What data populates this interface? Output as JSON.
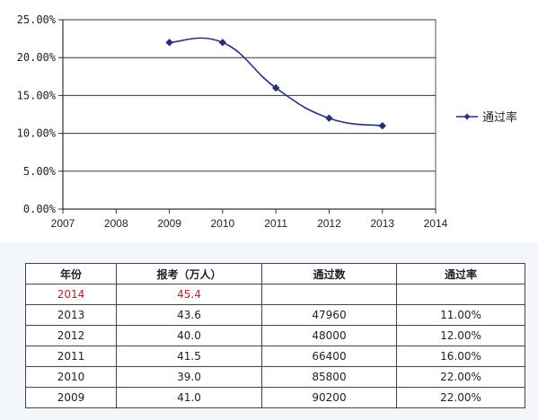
{
  "chart_data": {
    "type": "line",
    "x": [
      2009,
      2010,
      2011,
      2012,
      2013
    ],
    "series": [
      {
        "name": "通过率",
        "values": [
          0.22,
          0.22,
          0.16,
          0.12,
          0.11
        ]
      }
    ],
    "xlim": [
      2007,
      2014
    ],
    "ylim": [
      0,
      0.25
    ],
    "x_ticks": [
      "2007",
      "2008",
      "2009",
      "2010",
      "2011",
      "2012",
      "2013",
      "2014"
    ],
    "y_ticks": [
      "0.00%",
      "5.00%",
      "10.00%",
      "15.00%",
      "20.00%",
      "25.00%"
    ],
    "y_tick_values": [
      0,
      0.05,
      0.1,
      0.15,
      0.2,
      0.25
    ],
    "grid": true,
    "smooth": true,
    "legend_position": "right",
    "line_color": "#2a2f7a"
  },
  "table": {
    "headers": [
      "年份",
      "报考（万人）",
      "通过数",
      "通过率"
    ],
    "rows": [
      [
        "2014",
        "45.4",
        "",
        ""
      ],
      [
        "2013",
        "43.6",
        "47960",
        "11.00%"
      ],
      [
        "2012",
        "40.0",
        "48000",
        "12.00%"
      ],
      [
        "2011",
        "41.5",
        "66400",
        "16.00%"
      ],
      [
        "2010",
        "39.0",
        "85800",
        "22.00%"
      ],
      [
        "2009",
        "41.0",
        "90200",
        "22.00%"
      ]
    ],
    "highlight_color": "#b8202a"
  }
}
